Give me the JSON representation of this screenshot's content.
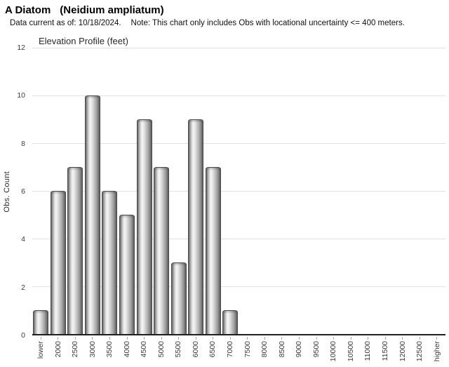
{
  "header": {
    "title_common": "A Diatom",
    "title_scientific": "(Neidium ampliatum)",
    "subtitle_data": "Data current as of: 10/18/2024.",
    "subtitle_note": "Note: This chart only includes Obs with locational uncertainty <= 400 meters."
  },
  "chart_data": {
    "type": "bar",
    "title": "Elevation Profile (feet)",
    "xlabel": "",
    "ylabel": "Obs. Count",
    "categories": [
      "lower",
      "2000",
      "2500",
      "3000",
      "3500",
      "4000",
      "4500",
      "5000",
      "5500",
      "6000",
      "6500",
      "7000",
      "7500",
      "8000",
      "8500",
      "9000",
      "9500",
      "10000",
      "10500",
      "11000",
      "11500",
      "12000",
      "12500",
      "higher"
    ],
    "values": [
      1,
      6,
      7,
      10,
      6,
      5,
      9,
      7,
      3,
      9,
      7,
      1,
      0,
      0,
      0,
      0,
      0,
      0,
      0,
      0,
      0,
      0,
      0,
      0
    ],
    "ylim": [
      0,
      12
    ],
    "yticks": [
      0,
      2,
      4,
      6,
      8,
      10,
      12
    ],
    "grid": "horizontal",
    "legend": "none",
    "colors": {
      "bar_highlight": "#f5f5f5",
      "bar_shadow": "#585858",
      "bar_outline": "#4c4c4c",
      "gridline": "#e2e2e2",
      "axis": "#1f1f1f",
      "tick_text": "#3d3d3d",
      "title_text": "#000000"
    }
  }
}
